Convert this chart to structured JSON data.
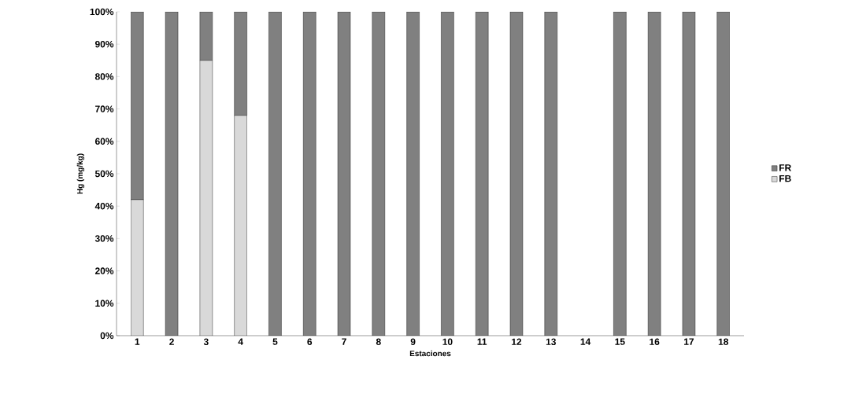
{
  "chart_data": {
    "type": "bar",
    "stacked": true,
    "xlabel": "Estaciones",
    "ylabel": "Hg (mg/kg)",
    "categories": [
      "1",
      "2",
      "3",
      "4",
      "5",
      "6",
      "7",
      "8",
      "9",
      "10",
      "11",
      "12",
      "13",
      "14",
      "15",
      "16",
      "17",
      "18"
    ],
    "series": [
      {
        "name": "FB",
        "color": "#d9d9d9",
        "values": [
          42,
          0,
          85,
          68,
          0,
          0,
          0,
          0,
          0,
          0,
          0,
          0,
          0,
          0,
          0,
          0,
          0,
          0
        ]
      },
      {
        "name": "FR",
        "color": "#808080",
        "values": [
          58,
          100,
          15,
          32,
          100,
          100,
          100,
          100,
          100,
          100,
          100,
          100,
          100,
          0,
          100,
          100,
          100,
          100
        ]
      }
    ],
    "ylim": [
      0,
      100
    ],
    "yticks": [
      {
        "value": 0,
        "label": "0%"
      },
      {
        "value": 10,
        "label": "10%"
      },
      {
        "value": 20,
        "label": "20%"
      },
      {
        "value": 30,
        "label": "30%"
      },
      {
        "value": 40,
        "label": "40%"
      },
      {
        "value": 50,
        "label": "50%"
      },
      {
        "value": 60,
        "label": "60%"
      },
      {
        "value": 70,
        "label": "70%"
      },
      {
        "value": 80,
        "label": "80%"
      },
      {
        "value": 90,
        "label": "90%"
      },
      {
        "value": 100,
        "label": "100%"
      }
    ],
    "legend": "right"
  }
}
